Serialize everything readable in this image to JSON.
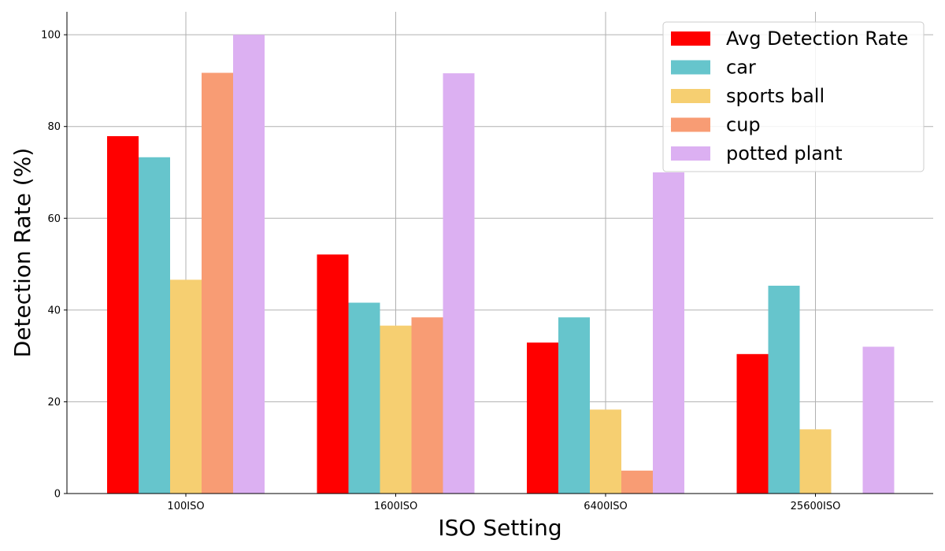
{
  "chart_data": {
    "type": "bar",
    "title": "",
    "xlabel": "ISO Setting",
    "ylabel": "Detection Rate (%)",
    "categories": [
      "100ISO",
      "1600ISO",
      "6400ISO",
      "25600ISO"
    ],
    "ylim": [
      0,
      105
    ],
    "yticks": [
      0,
      20,
      40,
      60,
      80,
      100
    ],
    "grid": true,
    "legend_position": "top-right",
    "series": [
      {
        "name": "Avg Detection Rate",
        "color": "#ff0000",
        "values": [
          77.9,
          52.1,
          32.9,
          30.4
        ]
      },
      {
        "name": "car",
        "color": "#66c5cc",
        "values": [
          73.3,
          41.6,
          38.4,
          45.3
        ]
      },
      {
        "name": "sports ball",
        "color": "#f6cf71",
        "values": [
          46.6,
          36.6,
          18.3,
          14.0
        ]
      },
      {
        "name": "cup",
        "color": "#f89c74",
        "values": [
          91.7,
          38.4,
          5.0,
          0
        ]
      },
      {
        "name": "potted plant",
        "color": "#dcb0f2",
        "values": [
          100.0,
          91.6,
          70.0,
          32.0
        ]
      }
    ]
  }
}
